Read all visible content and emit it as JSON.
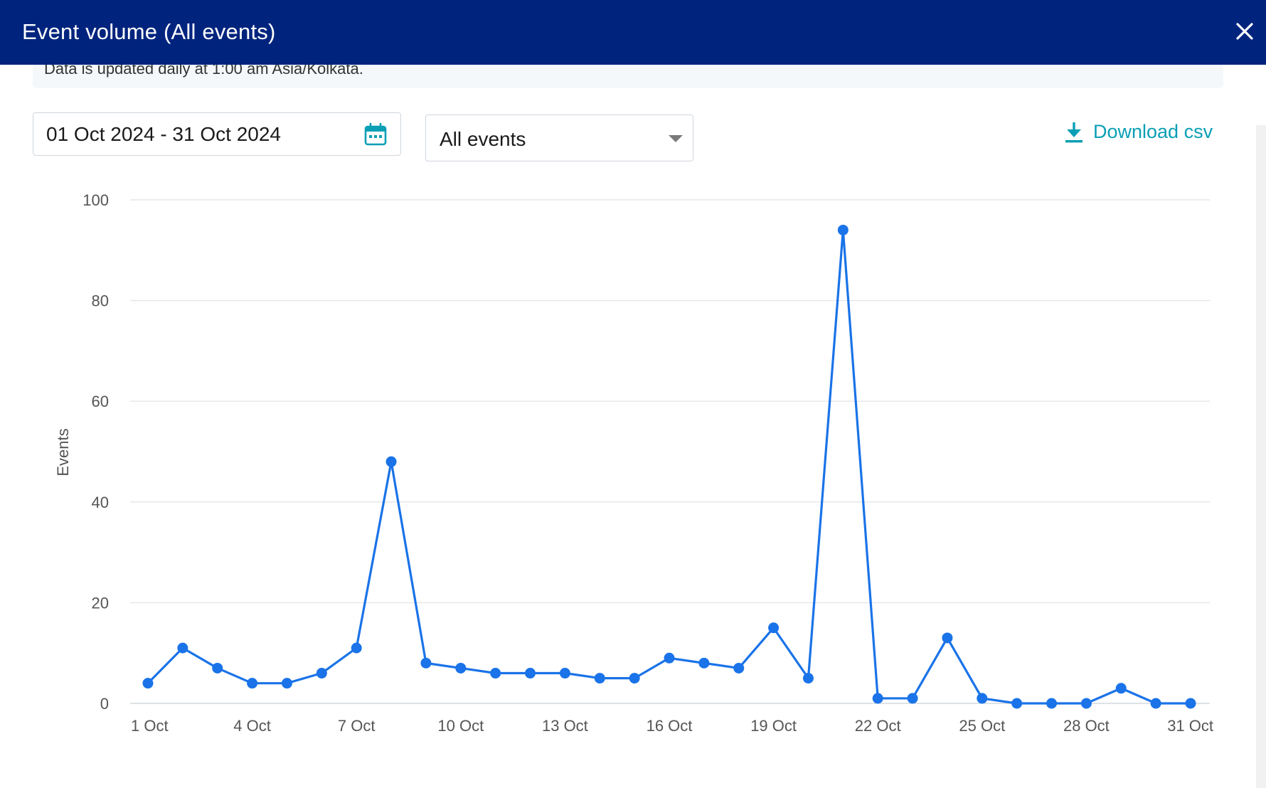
{
  "modal": {
    "title": "Event volume (All events)",
    "info_text": "Data is updated daily at 1:00 am Asia/Kolkata."
  },
  "controls": {
    "date_range": "01 Oct 2024 - 31 Oct 2024",
    "event_filter": "All events",
    "download_label": "Download csv"
  },
  "icons": {
    "close": "close-icon",
    "calendar": "calendar-icon",
    "caret": "chevron-down-icon",
    "download": "download-icon"
  },
  "colors": {
    "header": "#00247d",
    "line": "#1a73e8",
    "accent": "#0a9fb5",
    "grid": "#e3e6ea"
  },
  "chart_data": {
    "type": "line",
    "title": "",
    "xlabel": "",
    "ylabel": "Events",
    "ylim": [
      0,
      100
    ],
    "yticks": [
      0,
      20,
      40,
      60,
      80,
      100
    ],
    "grid": true,
    "x_tick_labels": [
      "1 Oct",
      "4 Oct",
      "7 Oct",
      "10 Oct",
      "13 Oct",
      "16 Oct",
      "19 Oct",
      "22 Oct",
      "25 Oct",
      "28 Oct",
      "31 Oct"
    ],
    "x_tick_days": [
      1,
      4,
      7,
      10,
      13,
      16,
      19,
      22,
      25,
      28,
      31
    ],
    "x": [
      "1 Oct",
      "2 Oct",
      "3 Oct",
      "4 Oct",
      "5 Oct",
      "6 Oct",
      "7 Oct",
      "8 Oct",
      "9 Oct",
      "10 Oct",
      "11 Oct",
      "12 Oct",
      "13 Oct",
      "14 Oct",
      "15 Oct",
      "16 Oct",
      "17 Oct",
      "18 Oct",
      "19 Oct",
      "20 Oct",
      "21 Oct",
      "22 Oct",
      "23 Oct",
      "24 Oct",
      "25 Oct",
      "26 Oct",
      "27 Oct",
      "28 Oct",
      "29 Oct",
      "30 Oct",
      "31 Oct"
    ],
    "series": [
      {
        "values": [
          4,
          11,
          7,
          4,
          4,
          6,
          11,
          48,
          8,
          7,
          6,
          6,
          6,
          5,
          5,
          9,
          8,
          7,
          15,
          5,
          94,
          1,
          1,
          13,
          1,
          0,
          0,
          0,
          3,
          0,
          0
        ]
      }
    ]
  }
}
